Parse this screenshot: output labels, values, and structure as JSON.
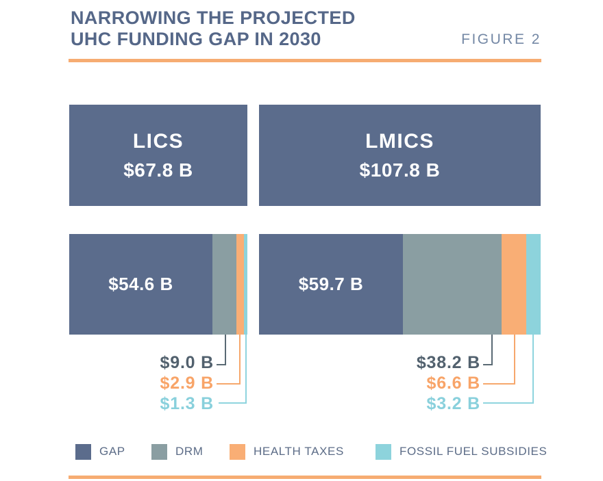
{
  "header": {
    "title_line1": "NARROWING THE PROJECTED",
    "title_line2": "UHC FUNDING GAP IN 2030",
    "figure_label": "FIGURE 2"
  },
  "blocks": {
    "lics": {
      "name": "LICS",
      "total": "$67.8 B"
    },
    "lmics": {
      "name": "LMICS",
      "total": "$107.8 B"
    }
  },
  "bars": {
    "lics": {
      "gap": "$54.6 B",
      "drm": "$9.0 B",
      "taxes": "$2.9 B",
      "fossil": "$1.3 B"
    },
    "lmics": {
      "gap": "$59.7 B",
      "drm": "$38.2 B",
      "taxes": "$6.6 B",
      "fossil": "$3.2 B"
    }
  },
  "legend": {
    "gap": "GAP",
    "drm": "DRM",
    "taxes": "HEALTH TAXES",
    "fossil": "FOSSIL FUEL SUBSIDIES"
  },
  "colors": {
    "gap": "#5b6c8c",
    "drm": "#8a9ea2",
    "health_taxes": "#f9ae75",
    "fossil_fuel_subsidies": "#8dd3dc",
    "accent_rule": "#f6ac72",
    "title_text": "#556788",
    "figure_label_text": "#7488a5"
  },
  "chart_data": {
    "type": "bar",
    "subtype": "horizontal-stacked",
    "title": "NARROWING THE PROJECTED UHC FUNDING GAP IN 2030",
    "figure_label": "FIGURE 2",
    "units": "USD billions",
    "categories": [
      "LICS",
      "LMICS"
    ],
    "totals": [
      67.8,
      107.8
    ],
    "series": [
      {
        "name": "GAP",
        "values": [
          54.6,
          59.7
        ]
      },
      {
        "name": "DRM",
        "values": [
          9.0,
          38.2
        ]
      },
      {
        "name": "HEALTH TAXES",
        "values": [
          2.9,
          6.6
        ]
      },
      {
        "name": "FOSSIL FUEL SUBSIDIES",
        "values": [
          1.3,
          3.2
        ]
      }
    ],
    "legend_position": "bottom",
    "grid": false
  }
}
